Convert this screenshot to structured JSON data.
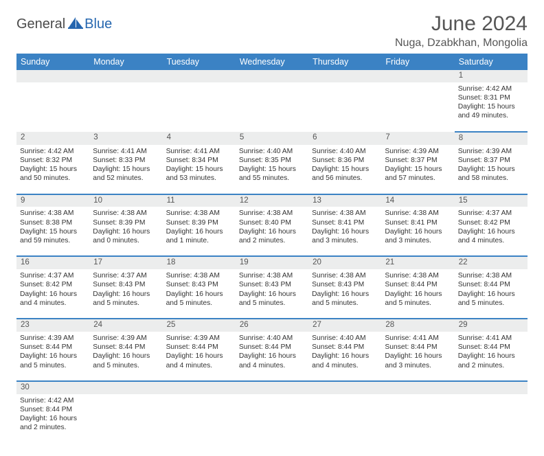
{
  "brand": {
    "part1": "General",
    "part2": "Blue",
    "accent": "#2566af"
  },
  "title": "June 2024",
  "location": "Nuga, Dzabkhan, Mongolia",
  "colors": {
    "header_bg": "#3b82c4",
    "header_fg": "#ffffff",
    "daynum_bg": "#eceded",
    "border": "#3b82c4",
    "text": "#333333"
  },
  "day_headers": [
    "Sunday",
    "Monday",
    "Tuesday",
    "Wednesday",
    "Thursday",
    "Friday",
    "Saturday"
  ],
  "weeks": [
    [
      null,
      null,
      null,
      null,
      null,
      null,
      {
        "n": "1",
        "sr": "Sunrise: 4:42 AM",
        "ss": "Sunset: 8:31 PM",
        "dl": "Daylight: 15 hours and 49 minutes."
      }
    ],
    [
      {
        "n": "2",
        "sr": "Sunrise: 4:42 AM",
        "ss": "Sunset: 8:32 PM",
        "dl": "Daylight: 15 hours and 50 minutes."
      },
      {
        "n": "3",
        "sr": "Sunrise: 4:41 AM",
        "ss": "Sunset: 8:33 PM",
        "dl": "Daylight: 15 hours and 52 minutes."
      },
      {
        "n": "4",
        "sr": "Sunrise: 4:41 AM",
        "ss": "Sunset: 8:34 PM",
        "dl": "Daylight: 15 hours and 53 minutes."
      },
      {
        "n": "5",
        "sr": "Sunrise: 4:40 AM",
        "ss": "Sunset: 8:35 PM",
        "dl": "Daylight: 15 hours and 55 minutes."
      },
      {
        "n": "6",
        "sr": "Sunrise: 4:40 AM",
        "ss": "Sunset: 8:36 PM",
        "dl": "Daylight: 15 hours and 56 minutes."
      },
      {
        "n": "7",
        "sr": "Sunrise: 4:39 AM",
        "ss": "Sunset: 8:37 PM",
        "dl": "Daylight: 15 hours and 57 minutes."
      },
      {
        "n": "8",
        "sr": "Sunrise: 4:39 AM",
        "ss": "Sunset: 8:37 PM",
        "dl": "Daylight: 15 hours and 58 minutes."
      }
    ],
    [
      {
        "n": "9",
        "sr": "Sunrise: 4:38 AM",
        "ss": "Sunset: 8:38 PM",
        "dl": "Daylight: 15 hours and 59 minutes."
      },
      {
        "n": "10",
        "sr": "Sunrise: 4:38 AM",
        "ss": "Sunset: 8:39 PM",
        "dl": "Daylight: 16 hours and 0 minutes."
      },
      {
        "n": "11",
        "sr": "Sunrise: 4:38 AM",
        "ss": "Sunset: 8:39 PM",
        "dl": "Daylight: 16 hours and 1 minute."
      },
      {
        "n": "12",
        "sr": "Sunrise: 4:38 AM",
        "ss": "Sunset: 8:40 PM",
        "dl": "Daylight: 16 hours and 2 minutes."
      },
      {
        "n": "13",
        "sr": "Sunrise: 4:38 AM",
        "ss": "Sunset: 8:41 PM",
        "dl": "Daylight: 16 hours and 3 minutes."
      },
      {
        "n": "14",
        "sr": "Sunrise: 4:38 AM",
        "ss": "Sunset: 8:41 PM",
        "dl": "Daylight: 16 hours and 3 minutes."
      },
      {
        "n": "15",
        "sr": "Sunrise: 4:37 AM",
        "ss": "Sunset: 8:42 PM",
        "dl": "Daylight: 16 hours and 4 minutes."
      }
    ],
    [
      {
        "n": "16",
        "sr": "Sunrise: 4:37 AM",
        "ss": "Sunset: 8:42 PM",
        "dl": "Daylight: 16 hours and 4 minutes."
      },
      {
        "n": "17",
        "sr": "Sunrise: 4:37 AM",
        "ss": "Sunset: 8:43 PM",
        "dl": "Daylight: 16 hours and 5 minutes."
      },
      {
        "n": "18",
        "sr": "Sunrise: 4:38 AM",
        "ss": "Sunset: 8:43 PM",
        "dl": "Daylight: 16 hours and 5 minutes."
      },
      {
        "n": "19",
        "sr": "Sunrise: 4:38 AM",
        "ss": "Sunset: 8:43 PM",
        "dl": "Daylight: 16 hours and 5 minutes."
      },
      {
        "n": "20",
        "sr": "Sunrise: 4:38 AM",
        "ss": "Sunset: 8:43 PM",
        "dl": "Daylight: 16 hours and 5 minutes."
      },
      {
        "n": "21",
        "sr": "Sunrise: 4:38 AM",
        "ss": "Sunset: 8:44 PM",
        "dl": "Daylight: 16 hours and 5 minutes."
      },
      {
        "n": "22",
        "sr": "Sunrise: 4:38 AM",
        "ss": "Sunset: 8:44 PM",
        "dl": "Daylight: 16 hours and 5 minutes."
      }
    ],
    [
      {
        "n": "23",
        "sr": "Sunrise: 4:39 AM",
        "ss": "Sunset: 8:44 PM",
        "dl": "Daylight: 16 hours and 5 minutes."
      },
      {
        "n": "24",
        "sr": "Sunrise: 4:39 AM",
        "ss": "Sunset: 8:44 PM",
        "dl": "Daylight: 16 hours and 5 minutes."
      },
      {
        "n": "25",
        "sr": "Sunrise: 4:39 AM",
        "ss": "Sunset: 8:44 PM",
        "dl": "Daylight: 16 hours and 4 minutes."
      },
      {
        "n": "26",
        "sr": "Sunrise: 4:40 AM",
        "ss": "Sunset: 8:44 PM",
        "dl": "Daylight: 16 hours and 4 minutes."
      },
      {
        "n": "27",
        "sr": "Sunrise: 4:40 AM",
        "ss": "Sunset: 8:44 PM",
        "dl": "Daylight: 16 hours and 4 minutes."
      },
      {
        "n": "28",
        "sr": "Sunrise: 4:41 AM",
        "ss": "Sunset: 8:44 PM",
        "dl": "Daylight: 16 hours and 3 minutes."
      },
      {
        "n": "29",
        "sr": "Sunrise: 4:41 AM",
        "ss": "Sunset: 8:44 PM",
        "dl": "Daylight: 16 hours and 2 minutes."
      }
    ],
    [
      {
        "n": "30",
        "sr": "Sunrise: 4:42 AM",
        "ss": "Sunset: 8:44 PM",
        "dl": "Daylight: 16 hours and 2 minutes."
      },
      null,
      null,
      null,
      null,
      null,
      null
    ]
  ]
}
